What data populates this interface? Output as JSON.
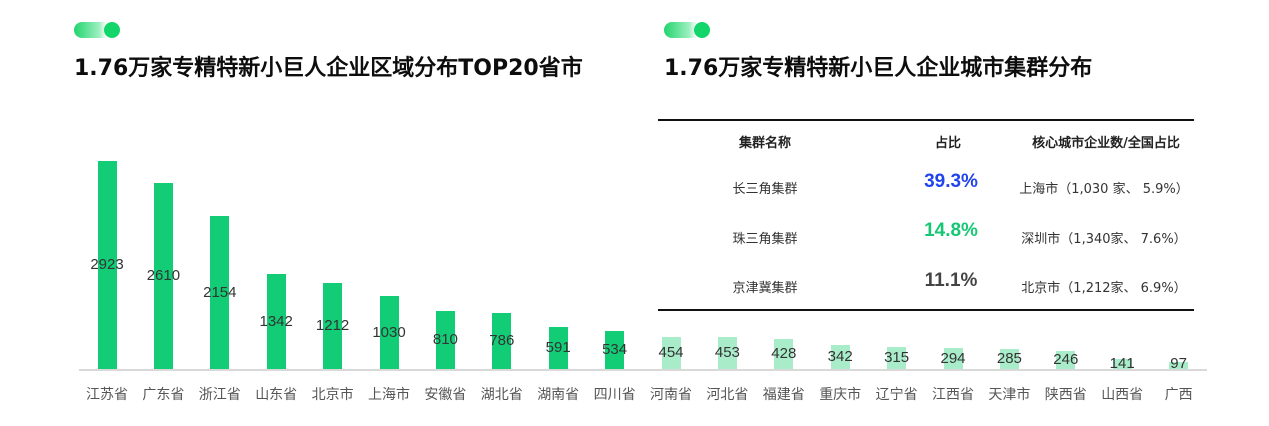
{
  "left_panel": {
    "title": "1.76万家专精特新小巨人企业区域分布TOP20省市"
  },
  "right_panel": {
    "title": "1.76万家专精特新小巨人企业城市集群分布",
    "table": {
      "headers": [
        "集群名称",
        "占比",
        "核心城市企业数/全国占比"
      ],
      "rows": [
        {
          "name": "长三角集群",
          "share": "39.3%",
          "share_color": "#2244ee",
          "core": "上海市（1,030 家、 5.9%）"
        },
        {
          "name": "珠三角集群",
          "share": "14.8%",
          "share_color": "#16c774",
          "core": "深圳市（1,340家、 7.6%）"
        },
        {
          "name": "京津冀集群",
          "share": "11.1%",
          "share_color": "#444444",
          "core": "北京市（1,212家、 6.9%）"
        }
      ]
    }
  },
  "colors": {
    "bar_primary": "#12cc76",
    "bar_light": "#a8ecca",
    "accent_blue": "#2244ee",
    "accent_green": "#16c774"
  },
  "chart_data": {
    "type": "bar",
    "title": "1.76万家专精特新小巨人企业区域分布TOP20省市",
    "xlabel": "",
    "ylabel": "",
    "categories": [
      "江苏省",
      "广东省",
      "浙江省",
      "山东省",
      "北京市",
      "上海市",
      "安徽省",
      "湖北省",
      "湖南省",
      "四川省",
      "河南省",
      "河北省",
      "福建省",
      "重庆市",
      "辽宁省",
      "江西省",
      "天津市",
      "陕西省",
      "山西省",
      "广西"
    ],
    "values": [
      2923,
      2610,
      2154,
      1342,
      1212,
      1030,
      810,
      786,
      591,
      534,
      454,
      453,
      428,
      342,
      315,
      294,
      285,
      246,
      141,
      97
    ],
    "highlight_top_n": 10,
    "ylim": [
      0,
      3000
    ],
    "grid": false,
    "legend": "none"
  }
}
